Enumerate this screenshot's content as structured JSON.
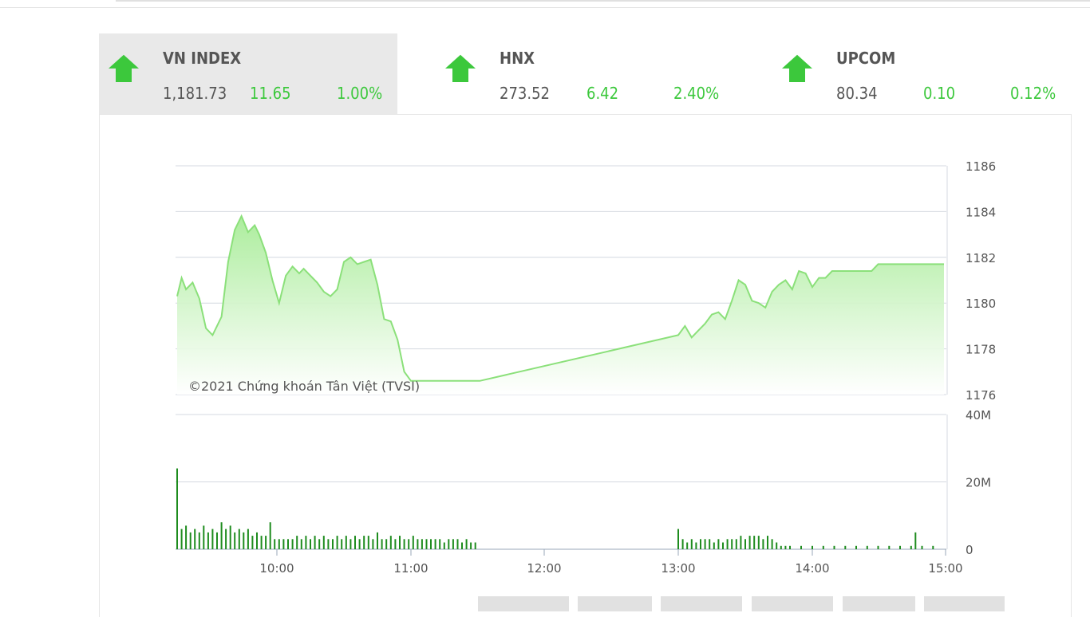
{
  "indices": [
    {
      "name": "VN INDEX",
      "value": "1,181.73",
      "change": "11.65",
      "pct": "1.00%",
      "active": true
    },
    {
      "name": "HNX",
      "value": "273.52",
      "change": "6.42",
      "pct": "2.40%",
      "active": false
    },
    {
      "name": "UPCOM",
      "value": "80.34",
      "change": "0.10",
      "pct": "0.12%",
      "active": false
    }
  ],
  "colors": {
    "up": "#3cc83c",
    "line": "#8be07a",
    "fill_top": "#a8ec98",
    "volume": "#1e8c1e",
    "grid": "#cfd6e0",
    "text": "#555555"
  },
  "chart_data": [
    {
      "type": "area",
      "watermark": "©2021 Chứng khoán Tân Việt (TVSI)",
      "x_ticks": [
        "10:00",
        "11:00",
        "12:00",
        "13:00",
        "14:00",
        "15:00"
      ],
      "y_ticks": [
        "1176",
        "1178",
        "1180",
        "1182",
        "1184",
        "1186"
      ],
      "ylim": [
        1176,
        1186
      ],
      "xlim": [
        "09:15",
        "15:00"
      ],
      "grid": true,
      "series": [
        {
          "x": [
            "09:15",
            "09:17",
            "09:19",
            "09:22",
            "09:25",
            "09:28",
            "09:31",
            "09:35",
            "09:38",
            "09:41",
            "09:44",
            "09:47",
            "09:50",
            "09:52",
            "09:55",
            "09:58",
            "10:01",
            "10:04",
            "10:07",
            "10:10",
            "10:12",
            "10:15",
            "10:18",
            "10:21",
            "10:24",
            "10:27",
            "10:30",
            "10:33",
            "10:36",
            "10:39",
            "10:42",
            "10:45",
            "10:48",
            "10:51",
            "10:54",
            "10:57",
            "11:00",
            "11:03",
            "11:06",
            "11:09",
            "11:12",
            "11:15",
            "11:18",
            "11:21",
            "11:24",
            "11:27",
            "11:30",
            "11:31",
            "13:00",
            "13:03",
            "13:06",
            "13:09",
            "13:12",
            "13:15",
            "13:18",
            "13:21",
            "13:24",
            "13:27",
            "13:30",
            "13:33",
            "13:36",
            "13:39",
            "13:42",
            "13:45",
            "13:48",
            "13:51",
            "13:54",
            "13:57",
            "14:00",
            "14:03",
            "14:06",
            "14:09",
            "14:12",
            "14:15",
            "14:18",
            "14:21",
            "14:24",
            "14:27",
            "14:30",
            "14:33",
            "14:36",
            "14:39",
            "14:42",
            "14:45",
            "15:00"
          ],
          "values": [
            1180.3,
            1181.1,
            1180.6,
            1180.9,
            1180.2,
            1178.9,
            1178.6,
            1179.4,
            1181.8,
            1183.2,
            1183.8,
            1183.1,
            1183.4,
            1183.0,
            1182.2,
            1181.0,
            1180.0,
            1181.2,
            1181.6,
            1181.3,
            1181.5,
            1181.2,
            1180.9,
            1180.5,
            1180.3,
            1180.6,
            1181.8,
            1182.0,
            1181.7,
            1181.8,
            1181.9,
            1180.8,
            1179.3,
            1179.2,
            1178.4,
            1177.0,
            1176.6,
            1176.6,
            1176.6,
            1176.6,
            1176.6,
            1176.6,
            1176.6,
            1176.6,
            1176.6,
            1176.6,
            1176.6,
            1176.6,
            1178.6,
            1179.0,
            1178.5,
            1178.8,
            1179.1,
            1179.5,
            1179.6,
            1179.3,
            1180.1,
            1181.0,
            1180.8,
            1180.1,
            1180.0,
            1179.8,
            1180.5,
            1180.8,
            1181.0,
            1180.6,
            1181.4,
            1181.3,
            1180.7,
            1181.1,
            1181.1,
            1181.4,
            1181.4,
            1181.4,
            1181.4,
            1181.4,
            1181.4,
            1181.4,
            1181.7,
            1181.7,
            1181.7,
            1181.7,
            1181.7,
            1181.7,
            1181.7
          ]
        }
      ]
    },
    {
      "type": "bar",
      "y_ticks": [
        "0",
        "20M",
        "40M"
      ],
      "ylim": [
        0,
        40
      ],
      "x": [
        "09:15",
        "09:17",
        "09:19",
        "09:21",
        "09:23",
        "09:25",
        "09:27",
        "09:29",
        "09:31",
        "09:33",
        "09:35",
        "09:37",
        "09:39",
        "09:41",
        "09:43",
        "09:45",
        "09:47",
        "09:49",
        "09:51",
        "09:53",
        "09:55",
        "09:57",
        "09:59",
        "10:01",
        "10:03",
        "10:05",
        "10:07",
        "10:09",
        "10:11",
        "10:13",
        "10:15",
        "10:17",
        "10:19",
        "10:21",
        "10:23",
        "10:25",
        "10:27",
        "10:29",
        "10:31",
        "10:33",
        "10:35",
        "10:37",
        "10:39",
        "10:41",
        "10:43",
        "10:45",
        "10:47",
        "10:49",
        "10:51",
        "10:53",
        "10:55",
        "10:57",
        "10:59",
        "11:01",
        "11:03",
        "11:05",
        "11:07",
        "11:09",
        "11:11",
        "11:13",
        "11:15",
        "11:17",
        "11:19",
        "11:21",
        "11:23",
        "11:25",
        "11:27",
        "11:29",
        "13:00",
        "13:02",
        "13:04",
        "13:06",
        "13:08",
        "13:10",
        "13:12",
        "13:14",
        "13:16",
        "13:18",
        "13:20",
        "13:22",
        "13:24",
        "13:26",
        "13:28",
        "13:30",
        "13:32",
        "13:34",
        "13:36",
        "13:38",
        "13:40",
        "13:42",
        "13:44",
        "13:46",
        "13:48",
        "13:50",
        "13:55",
        "14:00",
        "14:05",
        "14:10",
        "14:15",
        "14:20",
        "14:25",
        "14:30",
        "14:35",
        "14:40",
        "14:45",
        "14:47",
        "14:50",
        "14:55"
      ],
      "values": [
        24,
        6,
        7,
        5,
        6,
        5,
        7,
        5,
        6,
        5,
        8,
        6,
        7,
        5,
        6,
        5,
        6,
        4,
        5,
        4,
        4,
        8,
        3,
        3,
        3,
        3,
        3,
        4,
        3,
        4,
        3,
        4,
        3,
        4,
        3,
        3,
        4,
        3,
        4,
        3,
        4,
        3,
        4,
        4,
        3,
        5,
        3,
        3,
        4,
        3,
        4,
        3,
        3,
        4,
        3,
        3,
        3,
        3,
        3,
        3,
        2,
        3,
        3,
        3,
        2,
        3,
        2,
        2,
        6,
        3,
        2,
        3,
        2,
        3,
        3,
        3,
        2,
        3,
        2,
        3,
        3,
        3,
        4,
        3,
        4,
        4,
        4,
        3,
        4,
        3,
        2,
        1,
        1,
        1,
        1,
        1,
        1,
        1,
        1,
        1,
        1,
        1,
        1,
        1,
        1,
        5,
        1,
        1
      ]
    }
  ],
  "range_buttons": [
    "",
    "",
    "",
    "",
    "",
    ""
  ]
}
